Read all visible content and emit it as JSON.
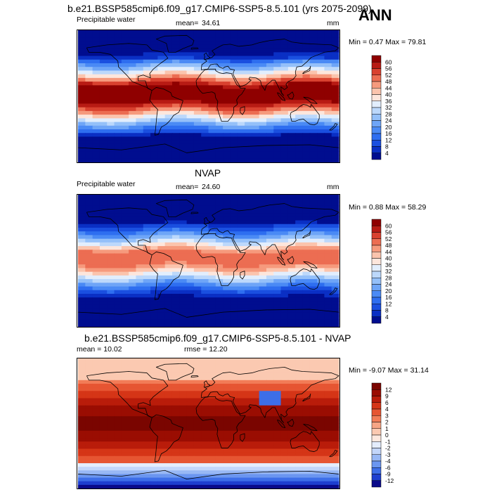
{
  "header": {
    "season": "ANN"
  },
  "panels": [
    {
      "title": "b.e21.BSSP585cmip6.f09_g17.CMIP6-SSP5-8.5.101 (yrs 2075-2099)",
      "left_label": "Precipitable water",
      "mean_label": "mean=",
      "mean_value": "34.61",
      "units": "mm",
      "min_label": "Min =",
      "min_value": "0.47",
      "max_label": "Max =",
      "max_value": "79.81",
      "colorbar_labels": [
        "60",
        "56",
        "52",
        "48",
        "44",
        "40",
        "36",
        "32",
        "28",
        "24",
        "20",
        "16",
        "12",
        "8",
        "4"
      ],
      "colors": [
        "#000d8f",
        "#0a2fc4",
        "#1a4fe0",
        "#2e6ef0",
        "#4a8af5",
        "#6ea5f7",
        "#94c0f9",
        "#bcd8fb",
        "#e2eefd",
        "#fde6dc",
        "#fbc4ad",
        "#f69a7d",
        "#ec6d52",
        "#d9412f",
        "#b81b14",
        "#8f0000"
      ]
    },
    {
      "title": "NVAP",
      "left_label": "Precipitable water",
      "mean_label": "mean=",
      "mean_value": "24.60",
      "units": "mm",
      "min_label": "Min =",
      "min_value": "0.88",
      "max_label": "Max =",
      "max_value": "58.29",
      "colorbar_labels": [
        "60",
        "56",
        "52",
        "48",
        "44",
        "40",
        "36",
        "32",
        "28",
        "24",
        "20",
        "16",
        "12",
        "8",
        "4"
      ],
      "colors": [
        "#000d8f",
        "#0a2fc4",
        "#1a4fe0",
        "#2e6ef0",
        "#4a8af5",
        "#6ea5f7",
        "#94c0f9",
        "#bcd8fb",
        "#e2eefd",
        "#fde6dc",
        "#fbc4ad",
        "#f69a7d",
        "#ec6d52",
        "#d9412f",
        "#b81b14",
        "#8f0000"
      ]
    },
    {
      "title": "b.e21.BSSP585cmip6.f09_g17.CMIP6-SSP5-8.5.101 - NVAP",
      "mean_label": "mean =",
      "mean_value": "10.02",
      "rmse_label": "rmse =",
      "rmse_value": "12.20",
      "min_label": "Min =",
      "min_value": "-9.07",
      "max_label": "Max =",
      "max_value": "31.14",
      "colorbar_labels": [
        "12",
        "9",
        "6",
        "4",
        "3",
        "2",
        "1",
        "0",
        "-1",
        "-2",
        "-3",
        "-4",
        "-6",
        "-9",
        "-12"
      ],
      "colors": [
        "#0a0a8a",
        "#1e3fd0",
        "#3d6ee8",
        "#6b96f0",
        "#98b8f5",
        "#c3d6fa",
        "#e4edfd",
        "#fde8de",
        "#fbc9b1",
        "#f7a585",
        "#f27c57",
        "#e65532",
        "#d53517",
        "#b91c0a",
        "#9a0d02",
        "#7a0500"
      ]
    }
  ]
}
